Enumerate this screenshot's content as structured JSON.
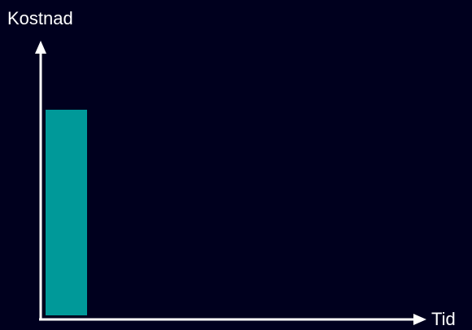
{
  "axes": {
    "y_label": "Kostnad",
    "x_label": "Tid"
  }
}
